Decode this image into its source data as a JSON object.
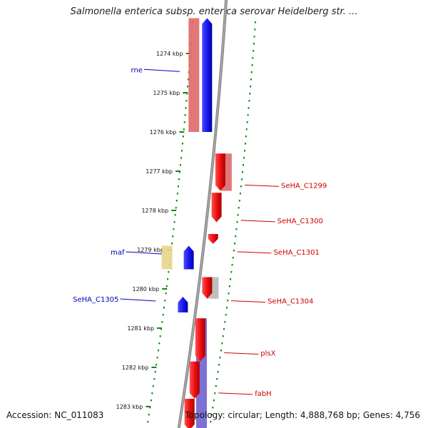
{
  "title": "Salmonella enterica subsp. enterica serovar Heidelberg str. ...",
  "footer": {
    "accession": "Accession: NC_011083",
    "topology": "Topology: circular; Length: 4,888,768 bp; Genes: 4,756"
  },
  "ticks": [
    {
      "label": "1274 kbp",
      "kbp": 1274
    },
    {
      "label": "1275 kbp",
      "kbp": 1275
    },
    {
      "label": "1276 kbp",
      "kbp": 1276
    },
    {
      "label": "1277 kbp",
      "kbp": 1277
    },
    {
      "label": "1278 kbp",
      "kbp": 1278
    },
    {
      "label": "1279 kbp",
      "kbp": 1279
    },
    {
      "label": "1280 kbp",
      "kbp": 1280
    },
    {
      "label": "1281 kbp",
      "kbp": 1281
    },
    {
      "label": "1282 kbp",
      "kbp": 1282
    },
    {
      "label": "1283 kbp",
      "kbp": 1283
    }
  ],
  "genes": [
    {
      "name": "rne",
      "strand": "-",
      "start_kbp": 1273.1,
      "end_kbp": 1276.0,
      "color": "#1a1aee"
    },
    {
      "name": "SeHA_C1299",
      "strand": "+",
      "start_kbp": 1276.55,
      "end_kbp": 1277.5,
      "color": "#ee1111"
    },
    {
      "name": "SeHA_C1300",
      "strand": "+",
      "start_kbp": 1277.55,
      "end_kbp": 1278.3,
      "color": "#ee1111"
    },
    {
      "name": "SeHA_C1301",
      "strand": "+",
      "start_kbp": 1278.6,
      "end_kbp": 1278.85,
      "color": "#ee1111"
    },
    {
      "name": "maf",
      "strand": "-",
      "start_kbp": 1278.9,
      "end_kbp": 1279.5,
      "color": "#1a1aee"
    },
    {
      "name": "SeHA_C1304",
      "strand": "+",
      "start_kbp": 1279.7,
      "end_kbp": 1280.25,
      "color": "#ee1111"
    },
    {
      "name": "SeHA_C1305",
      "strand": "-",
      "start_kbp": 1280.2,
      "end_kbp": 1280.6,
      "color": "#1a1aee"
    },
    {
      "name": "plsX",
      "strand": "+",
      "start_kbp": 1280.75,
      "end_kbp": 1281.85,
      "color": "#ee1111"
    },
    {
      "name": "fabH",
      "strand": "+",
      "start_kbp": 1281.85,
      "end_kbp": 1282.8,
      "color": "#ee1111"
    },
    {
      "name": "",
      "strand": "+",
      "start_kbp": 1282.8,
      "end_kbp": 1283.6,
      "color": "#ee1111"
    }
  ],
  "cds_tracks": [
    {
      "start_kbp": 1273.1,
      "end_kbp": 1276.0,
      "color": "#e06868"
    },
    {
      "start_kbp": 1276.55,
      "end_kbp": 1277.5,
      "color": "#e06868"
    },
    {
      "start_kbp": 1278.9,
      "end_kbp": 1279.5,
      "color": "#e8d58a"
    },
    {
      "start_kbp": 1279.7,
      "end_kbp": 1280.25,
      "color": "#b8b8b8"
    },
    {
      "start_kbp": 1280.75,
      "end_kbp": 1283.6,
      "color": "#7060d0"
    }
  ],
  "colors": {
    "forward_label": "#cc0000",
    "reverse_label": "#0000bb",
    "backbone": "#888888",
    "dotted": "#118811"
  }
}
